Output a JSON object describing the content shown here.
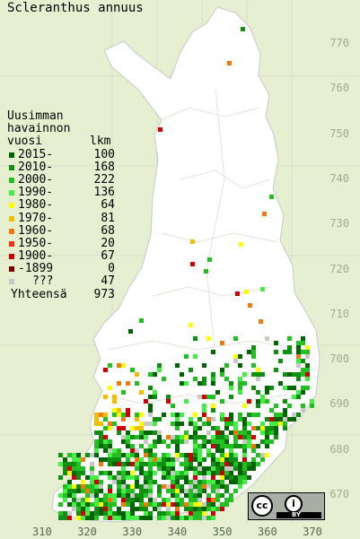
{
  "title": "Scleranthus annuus",
  "legend": {
    "heading": [
      "Uusimman",
      "havainnon"
    ],
    "col_label": "vuosi",
    "col_count": "lkm",
    "rows": [
      {
        "label": "2015-",
        "count": "100",
        "color": "#006400"
      },
      {
        "label": "2010-",
        "count": "168",
        "color": "#109010"
      },
      {
        "label": "2000-",
        "count": "222",
        "color": "#22c022"
      },
      {
        "label": "1990-",
        "count": "136",
        "color": "#44ee44"
      },
      {
        "label": "1980-",
        "count": "64",
        "color": "#ffff00"
      },
      {
        "label": "1970-",
        "count": "81",
        "color": "#f0c000"
      },
      {
        "label": "1960-",
        "count": "68",
        "color": "#f07a10"
      },
      {
        "label": "1950-",
        "count": "20",
        "color": "#e83810"
      },
      {
        "label": "1900-",
        "count": "67",
        "color": "#d00000"
      },
      {
        "label": "-1899",
        "count": "0",
        "color": "#800000"
      },
      {
        "label": "???",
        "count": "47",
        "color": "#c8c8c8"
      }
    ],
    "total_label": "Yhteensä",
    "total_value": "973"
  },
  "y_ticks": [
    "770",
    "760",
    "750",
    "740",
    "730",
    "720",
    "710",
    "700",
    "690",
    "680",
    "670"
  ],
  "x_ticks": [
    "310",
    "320",
    "330",
    "340",
    "350",
    "360",
    "370"
  ],
  "license": {
    "cc": "cc",
    "info": "i",
    "by": "BY"
  }
}
